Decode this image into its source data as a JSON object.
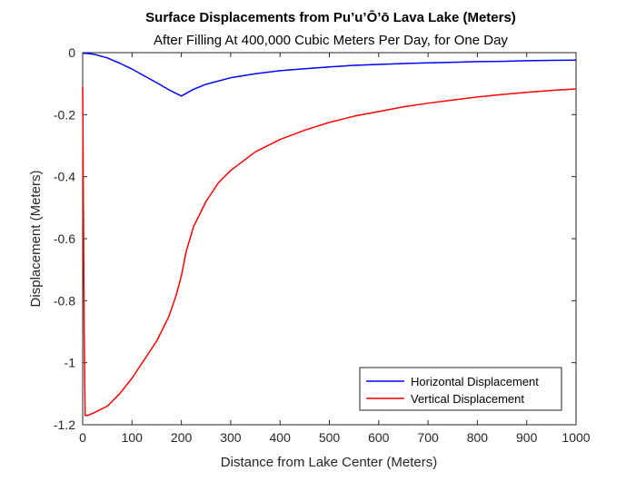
{
  "chart_data": {
    "type": "line",
    "title": "Surface Displacements from Pu’u’Ō’ō Lava Lake (Meters)",
    "subtitle": "After Filling At 400,000 Cubic Meters Per Day, for One Day",
    "xlabel": "Distance from Lake Center (Meters)",
    "ylabel": "Displacement (Meters)",
    "xlim": [
      0,
      1000
    ],
    "ylim": [
      -1.2,
      0
    ],
    "xticks": [
      0,
      100,
      200,
      300,
      400,
      500,
      600,
      700,
      800,
      900,
      1000
    ],
    "xtick_labels": [
      "0",
      "100",
      "200",
      "300",
      "400",
      "500",
      "600",
      "700",
      "800",
      "900",
      "1000"
    ],
    "yticks": [
      -1.2,
      -1,
      -0.8,
      -0.6,
      -0.4,
      -0.2,
      0
    ],
    "ytick_labels": [
      "-1.2",
      "-1",
      "-0.8",
      "-0.6",
      "-0.4",
      "-0.2",
      "0"
    ],
    "grid": false,
    "legend_position": "bottom-right",
    "series": [
      {
        "name": "Horizontal Displacement",
        "color": "#0000ff",
        "x": [
          0,
          10,
          25,
          50,
          75,
          100,
          125,
          150,
          175,
          200,
          225,
          250,
          300,
          350,
          400,
          450,
          500,
          550,
          600,
          650,
          700,
          750,
          800,
          850,
          900,
          950,
          1000
        ],
        "y": [
          -0.002,
          -0.0025,
          -0.006,
          -0.017,
          -0.034,
          -0.053,
          -0.075,
          -0.097,
          -0.12,
          -0.14,
          -0.118,
          -0.102,
          -0.081,
          -0.068,
          -0.058,
          -0.052,
          -0.046,
          -0.041,
          -0.038,
          -0.035,
          -0.033,
          -0.031,
          -0.029,
          -0.028,
          -0.026,
          -0.025,
          -0.024
        ]
      },
      {
        "name": "Vertical Displacement",
        "color": "#ff0000",
        "x": [
          0,
          3,
          5,
          10,
          25,
          50,
          75,
          100,
          125,
          150,
          175,
          190,
          200,
          210,
          225,
          250,
          275,
          300,
          350,
          400,
          450,
          500,
          550,
          600,
          650,
          700,
          750,
          800,
          850,
          900,
          950,
          1000
        ],
        "y": [
          -0.11,
          -0.9,
          -1.17,
          -1.17,
          -1.16,
          -1.14,
          -1.1,
          -1.05,
          -0.99,
          -0.93,
          -0.85,
          -0.78,
          -0.72,
          -0.64,
          -0.56,
          -0.48,
          -0.42,
          -0.38,
          -0.32,
          -0.28,
          -0.25,
          -0.225,
          -0.205,
          -0.19,
          -0.175,
          -0.163,
          -0.153,
          -0.143,
          -0.135,
          -0.128,
          -0.122,
          -0.117
        ]
      }
    ]
  }
}
